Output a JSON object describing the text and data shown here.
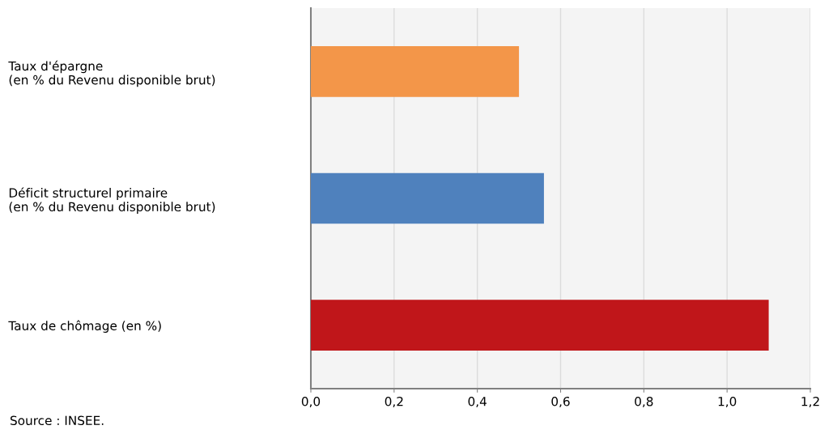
{
  "chart_data": {
    "type": "bar",
    "orientation": "horizontal",
    "categories": [
      "Taux d'épargne\n(en % du Revenu disponible brut)",
      "Déficit structurel primaire\n(en % du Revenu disponible brut)",
      "Taux de chômage (en %)"
    ],
    "values": [
      0.5,
      0.56,
      1.1
    ],
    "colors": [
      "#f39649",
      "#4f81bd",
      "#c0161a"
    ],
    "xlim": [
      0,
      1.2
    ],
    "xticks": [
      {
        "value": 0,
        "label": "0,0"
      },
      {
        "value": 0.2,
        "label": "0,2"
      },
      {
        "value": 0.4,
        "label": "0,4"
      },
      {
        "value": 0.6,
        "label": "0,6"
      },
      {
        "value": 0.8,
        "label": "0,8"
      },
      {
        "value": 1.0,
        "label": "1,0"
      },
      {
        "value": 1.2,
        "label": "1,2"
      }
    ],
    "grid": "x",
    "legend": false,
    "annotations": [
      "Source : INSEE."
    ]
  }
}
